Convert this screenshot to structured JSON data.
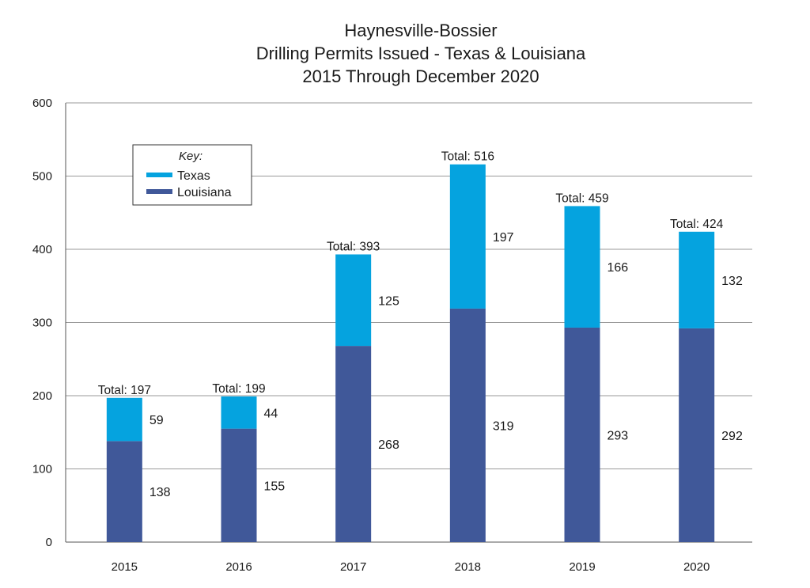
{
  "chart_data": {
    "type": "bar",
    "stacked": true,
    "title_lines": [
      "Haynesville-Bossier",
      "Drilling Permits Issued - Texas & Louisiana",
      "2015 Through December 2020"
    ],
    "categories": [
      "2015",
      "2016",
      "2017",
      "2018",
      "2019",
      "2020"
    ],
    "series": [
      {
        "name": "Louisiana",
        "values": [
          138,
          155,
          268,
          319,
          293,
          292
        ],
        "color": "#405899"
      },
      {
        "name": "Texas",
        "values": [
          59,
          44,
          125,
          197,
          166,
          132
        ],
        "color": "#05a3df"
      }
    ],
    "totals": [
      "Total: 197",
      "Total: 199",
      "Total: 393",
      "Total: 516",
      "Total: 459",
      "Total: 424"
    ],
    "ylim": [
      0,
      600
    ],
    "yticks": [
      0,
      100,
      200,
      300,
      400,
      500,
      600
    ],
    "grid": true,
    "legend": {
      "title": "Key:",
      "placement": "top-left",
      "entries": [
        "Texas",
        "Louisiana"
      ]
    }
  }
}
